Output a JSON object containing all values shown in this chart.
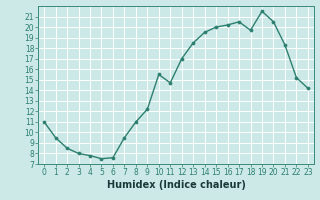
{
  "x": [
    0,
    1,
    2,
    3,
    4,
    5,
    6,
    7,
    8,
    9,
    10,
    11,
    12,
    13,
    14,
    15,
    16,
    17,
    18,
    19,
    20,
    21,
    22,
    23
  ],
  "y": [
    11,
    9.5,
    8.5,
    8.0,
    7.8,
    7.5,
    7.6,
    9.5,
    11.0,
    12.2,
    15.5,
    14.7,
    17.0,
    18.5,
    19.5,
    20.0,
    20.2,
    20.5,
    19.7,
    21.5,
    20.5,
    18.3,
    15.2,
    14.2
  ],
  "line_color": "#2d7f6f",
  "marker": "o",
  "marker_size": 2.2,
  "bg_color": "#cce9e8",
  "grid_color": "#ffffff",
  "xlabel": "Humidex (Indice chaleur)",
  "xlim": [
    -0.5,
    23.5
  ],
  "ylim": [
    7,
    22
  ],
  "xticks": [
    0,
    1,
    2,
    3,
    4,
    5,
    6,
    7,
    8,
    9,
    10,
    11,
    12,
    13,
    14,
    15,
    16,
    17,
    18,
    19,
    20,
    21,
    22,
    23
  ],
  "yticks": [
    7,
    8,
    9,
    10,
    11,
    12,
    13,
    14,
    15,
    16,
    17,
    18,
    19,
    20,
    21
  ],
  "tick_fontsize": 5.5,
  "label_fontsize": 7.0
}
